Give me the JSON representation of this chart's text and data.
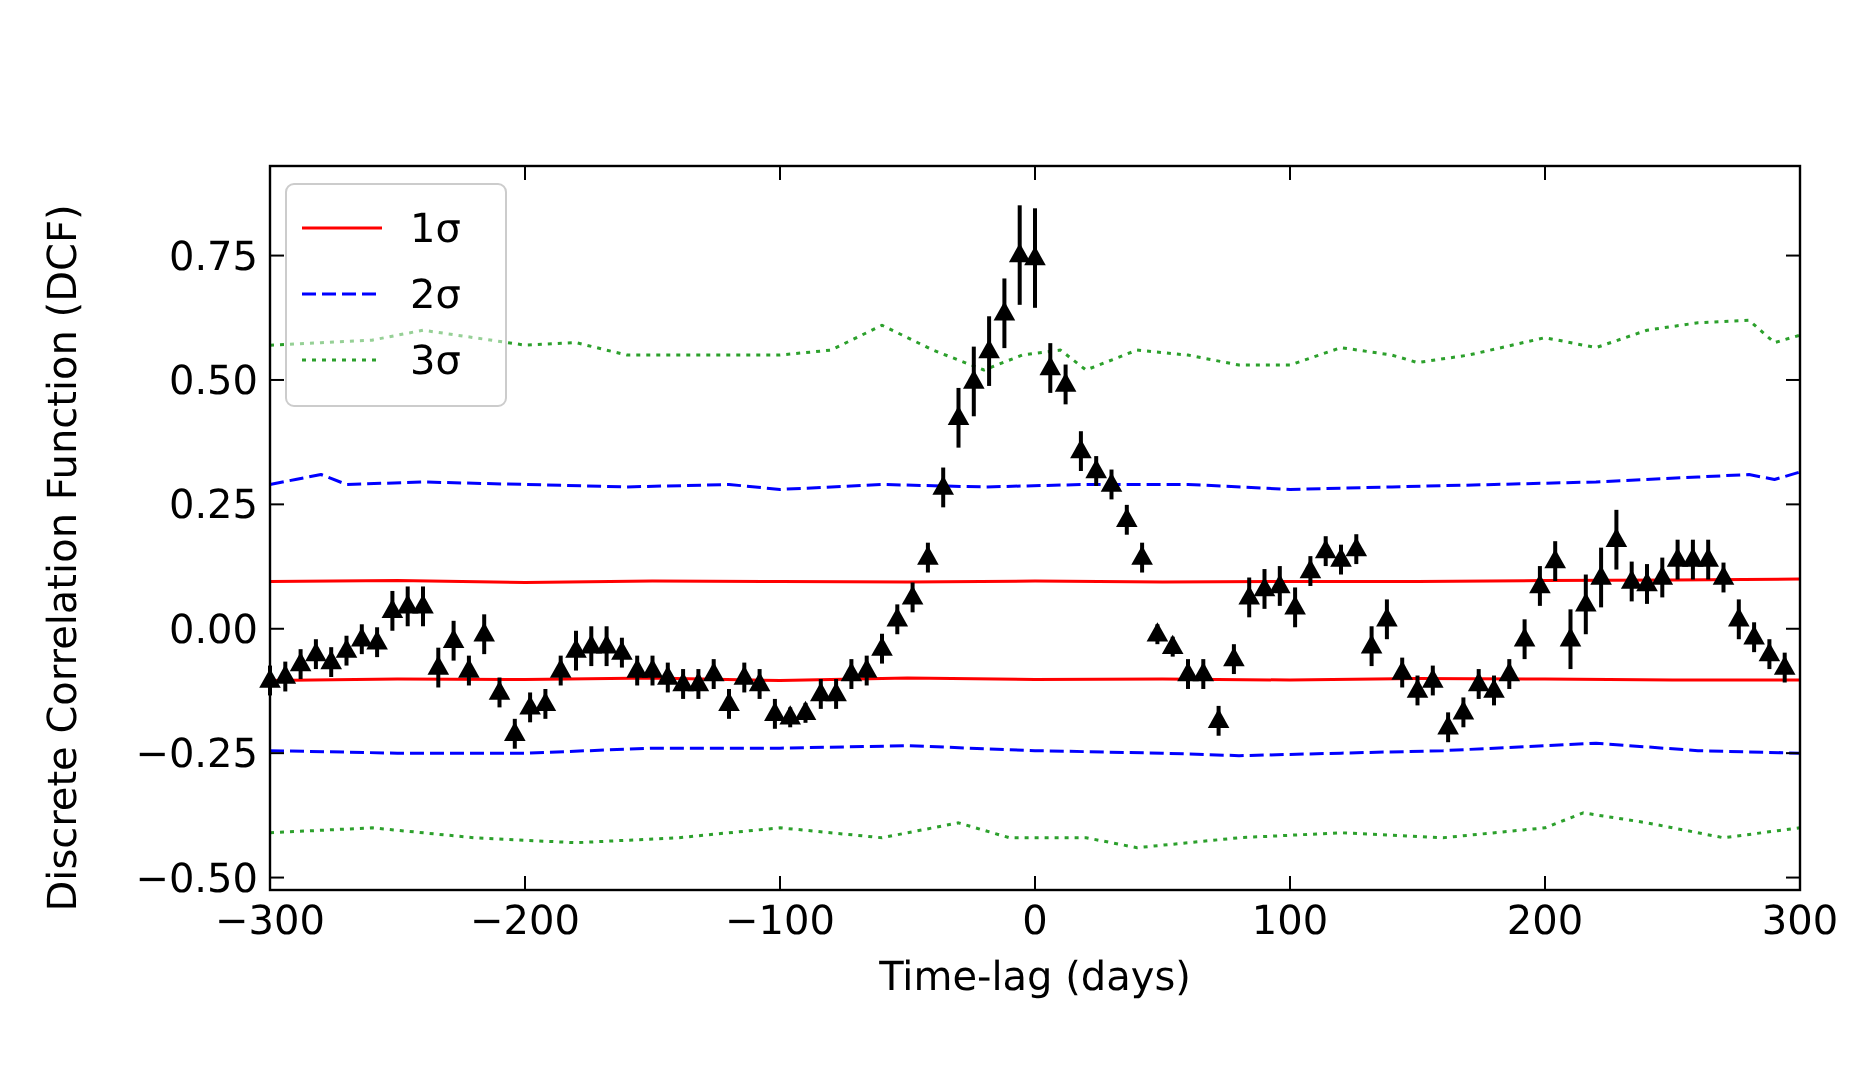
{
  "chart_data": {
    "type": "scatter",
    "xlabel": "Time-lag (days)",
    "ylabel": "Discrete Correlation Function (DCF)",
    "xlim": [
      -300,
      300
    ],
    "ylim": [
      -0.525,
      0.93
    ],
    "xticks": [
      {
        "value": -300,
        "label": "−300"
      },
      {
        "value": -200,
        "label": "−200"
      },
      {
        "value": -100,
        "label": "−100"
      },
      0,
      100,
      200,
      300
    ],
    "yticks": [
      {
        "value": -0.5,
        "label": "−0.50"
      },
      {
        "value": -0.25,
        "label": "−0.25"
      },
      {
        "value": 0,
        "label": "0.00"
      },
      {
        "value": 0.25,
        "label": "0.25"
      },
      {
        "value": 0.5,
        "label": "0.50"
      },
      {
        "value": 0.75,
        "label": "0.75"
      }
    ],
    "grid": false,
    "legend": "top left",
    "series": [
      {
        "color": "#000000",
        "marker": "triangle",
        "x": [
          -300,
          -294,
          -288,
          -282,
          -276,
          -270,
          -264,
          -258,
          -252,
          -246,
          -240,
          -234,
          -228,
          -222,
          -216,
          -210,
          -204,
          -198,
          -192,
          -186,
          -180,
          -174,
          -168,
          -162,
          -156,
          -150,
          -144,
          -138,
          -132,
          -126,
          -120,
          -114,
          -108,
          -102,
          -96,
          -90,
          -84,
          -78,
          -72,
          -66,
          -60,
          -54,
          -48,
          -42,
          -36,
          -30,
          -24,
          -18,
          -12,
          -6,
          0,
          6,
          12,
          18,
          24,
          30,
          36,
          42,
          48,
          54,
          60,
          66,
          72,
          78,
          84,
          90,
          96,
          102,
          108,
          114,
          120,
          126,
          132,
          138,
          144,
          150,
          156,
          162,
          168,
          174,
          180,
          186,
          192,
          198,
          204,
          210,
          216,
          222,
          228,
          234,
          240,
          246,
          252,
          258,
          264,
          270,
          276,
          282,
          288,
          294
        ],
        "values": [
          -0.104,
          -0.096,
          -0.071,
          -0.051,
          -0.067,
          -0.044,
          -0.021,
          -0.027,
          0.036,
          0.045,
          0.045,
          -0.078,
          -0.024,
          -0.084,
          -0.011,
          -0.128,
          -0.211,
          -0.158,
          -0.151,
          -0.084,
          -0.044,
          -0.035,
          -0.035,
          -0.048,
          -0.084,
          -0.084,
          -0.098,
          -0.111,
          -0.111,
          -0.091,
          -0.151,
          -0.098,
          -0.111,
          -0.171,
          -0.178,
          -0.169,
          -0.131,
          -0.131,
          -0.091,
          -0.084,
          -0.04,
          0.019,
          0.063,
          0.143,
          0.284,
          0.424,
          0.497,
          0.558,
          0.634,
          0.751,
          0.745,
          0.524,
          0.491,
          0.357,
          0.317,
          0.29,
          0.219,
          0.143,
          -0.011,
          -0.036,
          -0.091,
          -0.091,
          -0.185,
          -0.061,
          0.063,
          0.08,
          0.086,
          0.043,
          0.116,
          0.156,
          0.139,
          0.16,
          -0.035,
          0.019,
          -0.088,
          -0.124,
          -0.104,
          -0.198,
          -0.168,
          -0.111,
          -0.124,
          -0.091,
          -0.021,
          0.086,
          0.136,
          -0.021,
          0.049,
          0.103,
          0.179,
          0.095,
          0.09,
          0.103,
          0.139,
          0.139,
          0.139,
          0.103,
          0.019,
          -0.017,
          -0.051,
          -0.078
        ],
        "errors": [
          0.03,
          0.03,
          0.03,
          0.03,
          0.03,
          0.03,
          0.03,
          0.03,
          0.04,
          0.04,
          0.04,
          0.04,
          0.04,
          0.03,
          0.04,
          0.03,
          0.03,
          0.03,
          0.03,
          0.03,
          0.04,
          0.04,
          0.04,
          0.03,
          0.03,
          0.03,
          0.03,
          0.03,
          0.03,
          0.03,
          0.03,
          0.03,
          0.03,
          0.03,
          0.02,
          0.02,
          0.03,
          0.03,
          0.03,
          0.03,
          0.03,
          0.03,
          0.03,
          0.03,
          0.04,
          0.06,
          0.07,
          0.07,
          0.07,
          0.1,
          0.1,
          0.05,
          0.04,
          0.04,
          0.03,
          0.03,
          0.03,
          0.03,
          0.02,
          0.02,
          0.03,
          0.03,
          0.03,
          0.03,
          0.04,
          0.04,
          0.04,
          0.04,
          0.03,
          0.03,
          0.03,
          0.03,
          0.04,
          0.04,
          0.03,
          0.03,
          0.03,
          0.03,
          0.03,
          0.03,
          0.03,
          0.03,
          0.04,
          0.04,
          0.04,
          0.06,
          0.06,
          0.06,
          0.06,
          0.04,
          0.04,
          0.04,
          0.04,
          0.04,
          0.04,
          0.03,
          0.04,
          0.03,
          0.03,
          0.03
        ]
      },
      {
        "type": "line",
        "name": "1σ",
        "color": "#ff0000",
        "line_style": "solid",
        "x": [
          -300,
          -250,
          -200,
          -150,
          -100,
          -50,
          0,
          50,
          100,
          150,
          200,
          250,
          300
        ],
        "values": [
          0.095,
          0.097,
          0.093,
          0.096,
          0.095,
          0.094,
          0.096,
          0.094,
          0.095,
          0.095,
          0.097,
          0.098,
          0.1
        ]
      },
      {
        "type": "line",
        "color": "#ff0000",
        "line_style": "solid",
        "x": [
          -300,
          -250,
          -200,
          -150,
          -100,
          -50,
          0,
          50,
          100,
          150,
          200,
          250,
          300
        ],
        "values": [
          -0.104,
          -0.101,
          -0.102,
          -0.099,
          -0.104,
          -0.099,
          -0.102,
          -0.101,
          -0.103,
          -0.1,
          -0.101,
          -0.103,
          -0.103
        ]
      },
      {
        "type": "line",
        "name": "2σ",
        "color": "#0000ff",
        "line_style": "dashed",
        "x": [
          -300,
          -290,
          -280,
          -270,
          -240,
          -200,
          -160,
          -120,
          -100,
          -60,
          -20,
          20,
          60,
          100,
          140,
          180,
          220,
          260,
          280,
          290,
          300
        ],
        "values": [
          0.29,
          0.3,
          0.31,
          0.29,
          0.295,
          0.29,
          0.285,
          0.29,
          0.28,
          0.29,
          0.285,
          0.29,
          0.29,
          0.28,
          0.285,
          0.29,
          0.295,
          0.305,
          0.31,
          0.3,
          0.315
        ]
      },
      {
        "type": "line",
        "color": "#0000ff",
        "line_style": "dashed",
        "x": [
          -300,
          -250,
          -200,
          -150,
          -100,
          -50,
          0,
          50,
          80,
          120,
          160,
          200,
          220,
          260,
          300
        ],
        "values": [
          -0.245,
          -0.25,
          -0.25,
          -0.24,
          -0.24,
          -0.235,
          -0.245,
          -0.25,
          -0.255,
          -0.25,
          -0.245,
          -0.235,
          -0.23,
          -0.245,
          -0.25
        ]
      },
      {
        "type": "line",
        "name": "3σ",
        "color": "#2ca02c",
        "line_style": "dotted",
        "x": [
          -300,
          -280,
          -260,
          -240,
          -200,
          -180,
          -160,
          -120,
          -100,
          -80,
          -60,
          -40,
          -20,
          -5,
          10,
          20,
          40,
          60,
          80,
          100,
          120,
          140,
          150,
          170,
          200,
          220,
          240,
          260,
          280,
          290,
          300
        ],
        "values": [
          0.57,
          0.575,
          0.58,
          0.6,
          0.57,
          0.575,
          0.55,
          0.55,
          0.55,
          0.56,
          0.61,
          0.56,
          0.52,
          0.55,
          0.56,
          0.52,
          0.56,
          0.55,
          0.53,
          0.53,
          0.565,
          0.55,
          0.535,
          0.55,
          0.585,
          0.565,
          0.6,
          0.615,
          0.62,
          0.575,
          0.59
        ]
      },
      {
        "type": "line",
        "color": "#2ca02c",
        "line_style": "dotted",
        "x": [
          -300,
          -260,
          -220,
          -180,
          -140,
          -100,
          -60,
          -30,
          -10,
          20,
          40,
          80,
          120,
          160,
          200,
          215,
          240,
          270,
          300
        ],
        "values": [
          -0.41,
          -0.4,
          -0.42,
          -0.43,
          -0.42,
          -0.4,
          -0.42,
          -0.39,
          -0.42,
          -0.42,
          -0.44,
          -0.42,
          -0.41,
          -0.42,
          -0.4,
          -0.37,
          -0.39,
          -0.42,
          -0.4
        ]
      }
    ]
  }
}
